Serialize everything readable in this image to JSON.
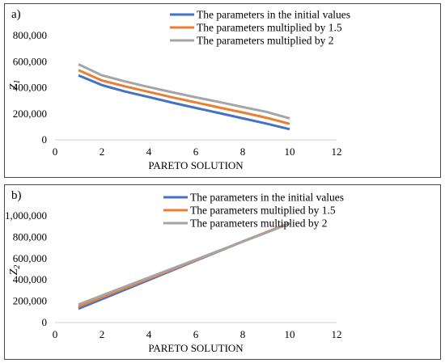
{
  "chart_data": [
    {
      "type": "line",
      "panel_label": "a)",
      "xlabel": "PARETO SOLUTION",
      "ylabel": "Z1",
      "xlim": [
        0,
        12
      ],
      "ylim": [
        0,
        800000
      ],
      "x_ticks": [
        "0",
        "2",
        "4",
        "6",
        "8",
        "10",
        "12"
      ],
      "y_ticks": [
        "0",
        "200,000",
        "400,000",
        "600,000",
        "800,000"
      ],
      "grid": false,
      "legend_position": "top-right",
      "x": [
        1,
        2,
        3,
        4,
        5,
        6,
        7,
        8,
        9,
        10
      ],
      "series": [
        {
          "name": "The parameters in the initial values",
          "color": "#4472C4",
          "values": [
            495000,
            420000,
            370000,
            328000,
            285000,
            245000,
            205000,
            165000,
            125000,
            82000
          ]
        },
        {
          "name": "The parameters multiplied by 1.5",
          "color": "#ED7D31",
          "values": [
            535000,
            455000,
            410000,
            368000,
            326000,
            287000,
            248000,
            210000,
            170000,
            123000
          ]
        },
        {
          "name": "The parameters multiplied by 2",
          "color": "#A5A5A5",
          "values": [
            580000,
            495000,
            448000,
            405000,
            365000,
            326000,
            290000,
            252000,
            215000,
            165000
          ]
        }
      ]
    },
    {
      "type": "line",
      "panel_label": "b)",
      "xlabel": "PARETO SOLUTION",
      "ylabel": "Z2",
      "xlim": [
        0,
        12
      ],
      "ylim": [
        0,
        1000000
      ],
      "x_ticks": [
        "0",
        "2",
        "4",
        "6",
        "8",
        "10",
        "12"
      ],
      "y_ticks": [
        "0",
        "200,000",
        "400,000",
        "600,000",
        "800,000",
        "1,000,000"
      ],
      "grid": false,
      "legend_position": "top-right",
      "x": [
        1,
        2,
        3,
        4,
        5,
        6,
        7,
        8,
        9,
        10
      ],
      "series": [
        {
          "name": "The parameters in the initial values",
          "color": "#4472C4",
          "values": [
            130000,
            220000,
            310000,
            400000,
            490000,
            580000,
            670000,
            760000,
            845000,
            930000
          ]
        },
        {
          "name": "The parameters multiplied by 1.5",
          "color": "#ED7D31",
          "values": [
            150000,
            237000,
            324000,
            411000,
            498000,
            585000,
            672000,
            759000,
            846000,
            930000
          ]
        },
        {
          "name": "The parameters multiplied by 2",
          "color": "#A5A5A5",
          "values": [
            170000,
            254000,
            338000,
            422000,
            506000,
            590000,
            674000,
            758000,
            842000,
            930000
          ]
        }
      ]
    }
  ]
}
